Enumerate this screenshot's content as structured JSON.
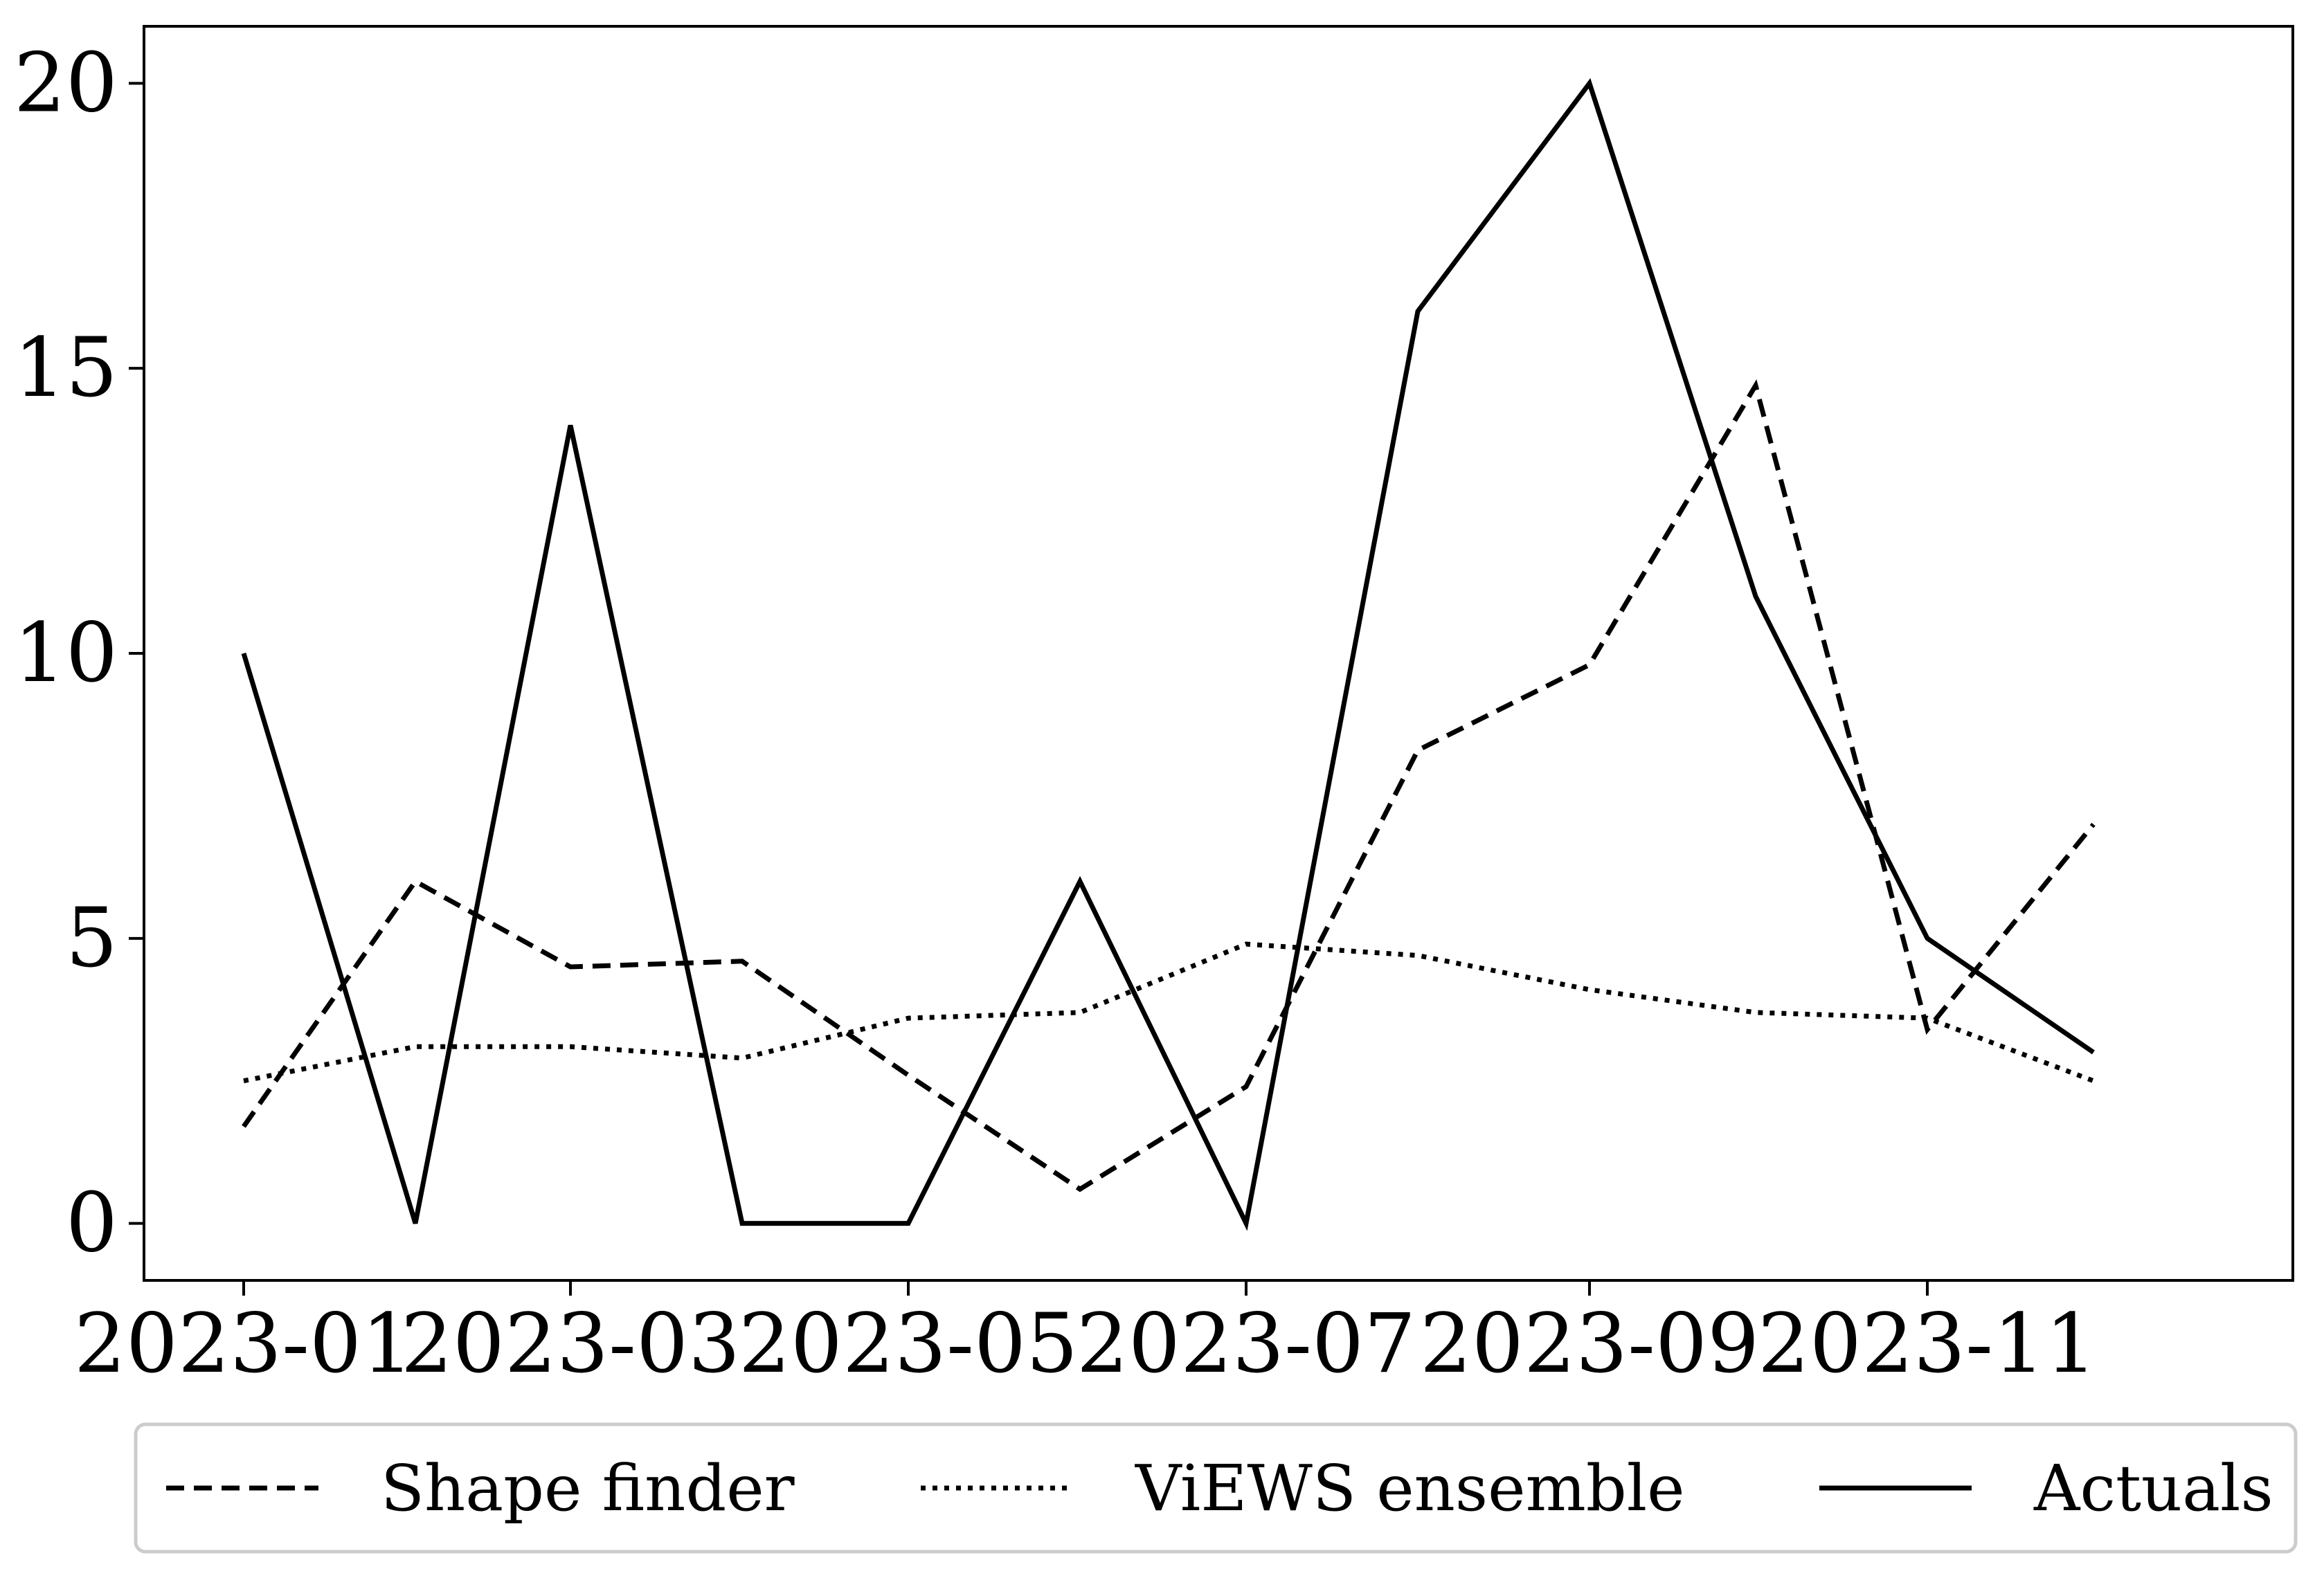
{
  "chart_data": {
    "type": "line",
    "x": [
      "2023-01",
      "2023-02",
      "2023-03",
      "2023-04",
      "2023-05",
      "2023-06",
      "2023-07",
      "2023-08",
      "2023-09",
      "2023-10",
      "2023-11",
      "2023-12"
    ],
    "x_ticks": [
      "2023-01",
      "2023-03",
      "2023-05",
      "2023-07",
      "2023-09",
      "2023-11"
    ],
    "y_ticks": [
      0,
      5,
      10,
      15,
      20
    ],
    "ylim": [
      -1,
      21
    ],
    "xlim": [
      "2022-12-14",
      "2024-01-06"
    ],
    "grid": false,
    "legend_position": "bottom",
    "series": [
      {
        "name": "Shape finder",
        "style": "dashed",
        "color": "#000000",
        "values": [
          1.7,
          6.0,
          4.5,
          4.6,
          2.6,
          0.6,
          2.4,
          8.3,
          9.8,
          14.7,
          3.4,
          7.0
        ]
      },
      {
        "name": "ViEWS ensemble",
        "style": "dotted",
        "color": "#000000",
        "values": [
          2.5,
          3.1,
          3.1,
          2.9,
          3.6,
          3.7,
          4.9,
          4.7,
          4.1,
          3.7,
          3.6,
          2.5
        ]
      },
      {
        "name": "Actuals",
        "style": "solid",
        "color": "#000000",
        "values": [
          10,
          0,
          14,
          0,
          0,
          6,
          0,
          16,
          20,
          11,
          5,
          3
        ]
      }
    ]
  }
}
